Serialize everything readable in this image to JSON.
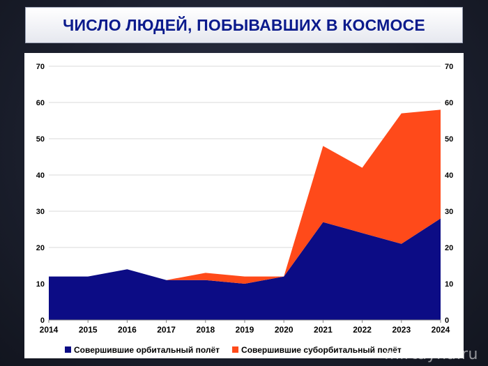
{
  "header": {
    "title": "ЧИСЛО ЛЮДЕЙ, ПОБЫВАВШИХ В КОСМОСЕ"
  },
  "watermark": "mirtayna.ru",
  "colors": {
    "orbital": "#0c0c85",
    "suborbital": "#ff4a1a",
    "grid": "#d9d9d9",
    "axis_text": "#000000"
  },
  "chart_data": {
    "type": "area",
    "stacked": true,
    "x": [
      2014,
      2015,
      2016,
      2017,
      2018,
      2019,
      2020,
      2021,
      2022,
      2023,
      2024
    ],
    "ylim": [
      0,
      70
    ],
    "yticks": [
      0,
      10,
      20,
      30,
      40,
      50,
      60,
      70
    ],
    "secondary_y_axis": true,
    "grid": true,
    "legend_position": "bottom",
    "series": [
      {
        "name": "Совершившие орбитальный полёт",
        "color": "#0c0c85",
        "values": [
          12,
          12,
          14,
          11,
          11,
          10,
          12,
          27,
          24,
          21,
          28
        ]
      },
      {
        "name": "Совершившие суборбитальный полёт",
        "color": "#ff4a1a",
        "values": [
          0,
          0,
          0,
          0,
          2,
          2,
          0,
          21,
          18,
          36,
          30
        ]
      }
    ]
  }
}
